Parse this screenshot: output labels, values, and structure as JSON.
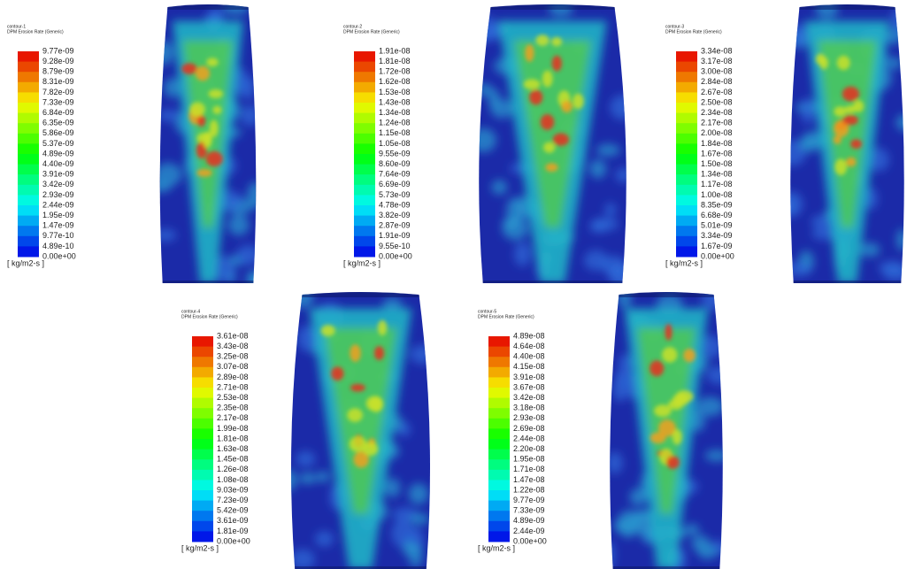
{
  "panels": [
    {
      "title": "contour-1",
      "variable": "DPM Erosion Rate (Generic)",
      "unit": "[ kg/m2-s ]",
      "labels": [
        "9.77e-09",
        "9.28e-09",
        "8.79e-09",
        "8.31e-09",
        "7.82e-09",
        "7.33e-09",
        "6.84e-09",
        "6.35e-09",
        "5.86e-09",
        "5.37e-09",
        "4.89e-09",
        "4.40e-09",
        "3.91e-09",
        "3.42e-09",
        "2.93e-09",
        "2.44e-09",
        "1.95e-09",
        "1.47e-09",
        "9.77e-10",
        "4.89e-10",
        "0.00e+00"
      ]
    },
    {
      "title": "contour-2",
      "variable": "DPM Erosion Rate (Generic)",
      "unit": "[ kg/m2-s ]",
      "labels": [
        "1.91e-08",
        "1.81e-08",
        "1.72e-08",
        "1.62e-08",
        "1.53e-08",
        "1.43e-08",
        "1.34e-08",
        "1.24e-08",
        "1.15e-08",
        "1.05e-08",
        "9.55e-09",
        "8.60e-09",
        "7.64e-09",
        "6.69e-09",
        "5.73e-09",
        "4.78e-09",
        "3.82e-09",
        "2.87e-09",
        "1.91e-09",
        "9.55e-10",
        "0.00e+00"
      ]
    },
    {
      "title": "contour-3",
      "variable": "DPM Erosion Rate (Generic)",
      "unit": "[ kg/m2-s ]",
      "labels": [
        "3.34e-08",
        "3.17e-08",
        "3.00e-08",
        "2.84e-08",
        "2.67e-08",
        "2.50e-08",
        "2.34e-08",
        "2.17e-08",
        "2.00e-08",
        "1.84e-08",
        "1.67e-08",
        "1.50e-08",
        "1.34e-08",
        "1.17e-08",
        "1.00e-08",
        "8.35e-09",
        "6.68e-09",
        "5.01e-09",
        "3.34e-09",
        "1.67e-09",
        "0.00e+00"
      ]
    },
    {
      "title": "contour-4",
      "variable": "DPM Erosion Rate (Generic)",
      "unit": "[ kg/m2-s ]",
      "labels": [
        "3.61e-08",
        "3.43e-08",
        "3.25e-08",
        "3.07e-08",
        "2.89e-08",
        "2.71e-08",
        "2.53e-08",
        "2.35e-08",
        "2.17e-08",
        "1.99e-08",
        "1.81e-08",
        "1.63e-08",
        "1.45e-08",
        "1.26e-08",
        "1.08e-08",
        "9.03e-09",
        "7.23e-09",
        "5.42e-09",
        "3.61e-09",
        "1.81e-09",
        "0.00e+00"
      ]
    },
    {
      "title": "contour-5",
      "variable": "DPM Erosion Rate (Generic)",
      "unit": "[ kg/m2-s ]",
      "labels": [
        "4.89e-08",
        "4.64e-08",
        "4.40e-08",
        "4.15e-08",
        "3.91e-08",
        "3.67e-08",
        "3.42e-08",
        "3.18e-08",
        "2.93e-08",
        "2.69e-08",
        "2.44e-08",
        "2.20e-08",
        "1.95e-08",
        "1.71e-08",
        "1.47e-08",
        "1.22e-08",
        "9.77e-09",
        "7.33e-09",
        "4.89e-09",
        "2.44e-09",
        "0.00e+00"
      ]
    }
  ]
}
